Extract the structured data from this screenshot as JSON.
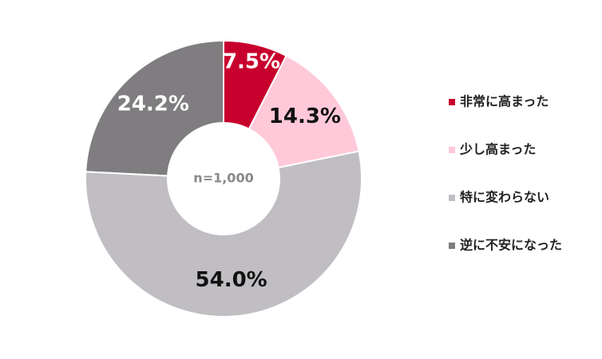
{
  "chart_data": {
    "type": "pie",
    "categories": [
      "非常に高まった",
      "少し高まった",
      "特に変わらない",
      "逆に不安になった"
    ],
    "values": [
      7.5,
      14.3,
      54.0,
      24.2
    ],
    "value_labels": [
      "7.5%",
      "14.3%",
      "54.0%",
      "24.2%"
    ],
    "colors": [
      "#c8002d",
      "#ffc9d9",
      "#c0bec2",
      "#7f7d80"
    ],
    "donut": true,
    "annotation": "n=1,000",
    "legend": "right"
  }
}
